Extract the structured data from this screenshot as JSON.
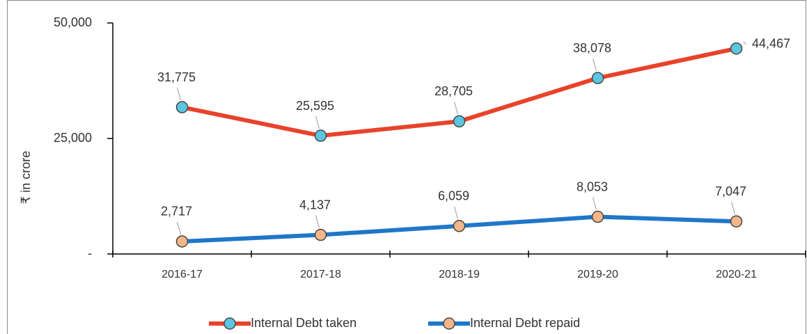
{
  "chart_data": {
    "type": "line",
    "y_label": "₹ in crore",
    "categories": [
      "2016-17",
      "2017-18",
      "2018-19",
      "2019-20",
      "2020-21"
    ],
    "series": [
      {
        "name": "Internal Debt taken",
        "color": "#e8432a",
        "marker_color": "#5cc6e0",
        "values": [
          31775,
          25595,
          28705,
          38078,
          44467
        ],
        "value_labels": [
          "31,775",
          "25,595",
          "28,705",
          "38,078",
          "44,467"
        ]
      },
      {
        "name": "Internal Debt repaid",
        "color": "#1f77c8",
        "marker_color": "#f3b688",
        "values": [
          2717,
          4137,
          6059,
          8053,
          7047
        ],
        "value_labels": [
          "2,717",
          "4,137",
          "6,059",
          "8,053",
          "7,047"
        ]
      }
    ],
    "ylim": [
      0,
      50000
    ],
    "yticks": [
      {
        "value": 0,
        "label": "-"
      },
      {
        "value": 25000,
        "label": "25,000"
      },
      {
        "value": 50000,
        "label": "50,000"
      }
    ],
    "legend": "bottom"
  }
}
